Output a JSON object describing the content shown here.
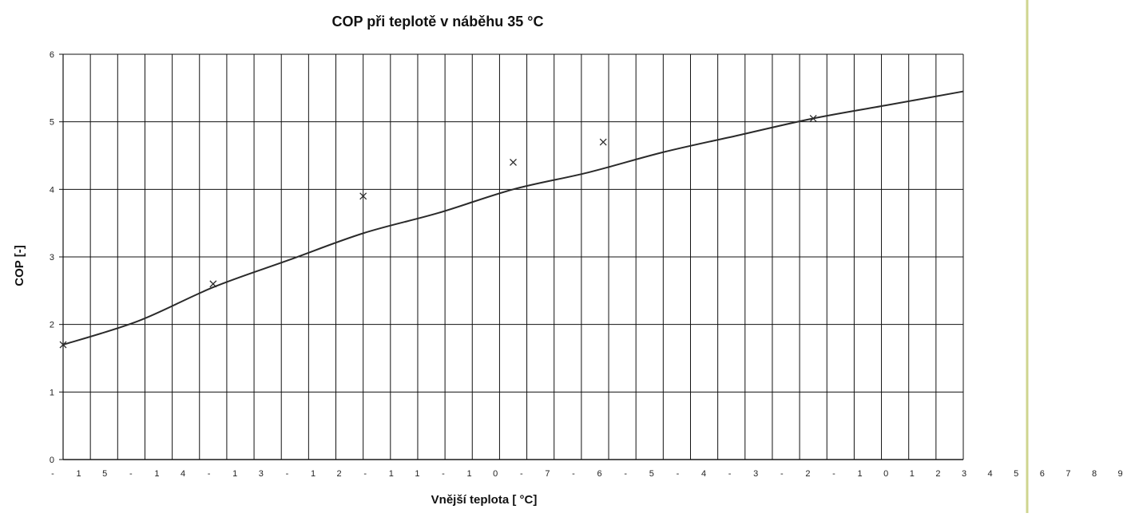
{
  "chart_data": {
    "type": "line",
    "title": "COP při teplotě v náběhu 35 °C",
    "xlabel": "Vnější teplota [ °C]",
    "ylabel": "COP [-]",
    "ylim": [
      0,
      6
    ],
    "y_ticks": [
      "0",
      "1",
      "2",
      "3",
      "4",
      "5",
      "6"
    ],
    "x_tick_labels": [
      "-",
      "1",
      "5",
      "-",
      "1",
      "4",
      "-",
      "1",
      "3",
      "-",
      "1",
      "2",
      "-",
      "1",
      "1",
      "-",
      "1",
      "0",
      "-",
      "7",
      "-",
      "6",
      "-",
      "5",
      "-",
      "4",
      "-",
      "3",
      "-",
      "2",
      "-",
      "1",
      "0",
      "1",
      "2",
      "3",
      "4",
      "5",
      "6",
      "7",
      "8",
      "9"
    ],
    "grid": true,
    "series": [
      {
        "x": [
          -15,
          -10,
          -5,
          0,
          3,
          10
        ],
        "y": [
          1.7,
          2.6,
          3.9,
          4.4,
          4.7,
          5.05
        ]
      }
    ],
    "curve": {
      "x": [
        -15,
        -12.5,
        -10,
        -7.5,
        -5,
        -2.5,
        0,
        2.5,
        5,
        7.5,
        10,
        12.5,
        15
      ],
      "y": [
        1.7,
        2.05,
        2.55,
        2.95,
        3.35,
        3.65,
        4.0,
        4.25,
        4.55,
        4.8,
        5.05,
        5.25,
        5.45
      ]
    },
    "colors": {
      "line": "#2a2a2a",
      "grid": "#111111",
      "right_band": "#cfd58f"
    }
  }
}
